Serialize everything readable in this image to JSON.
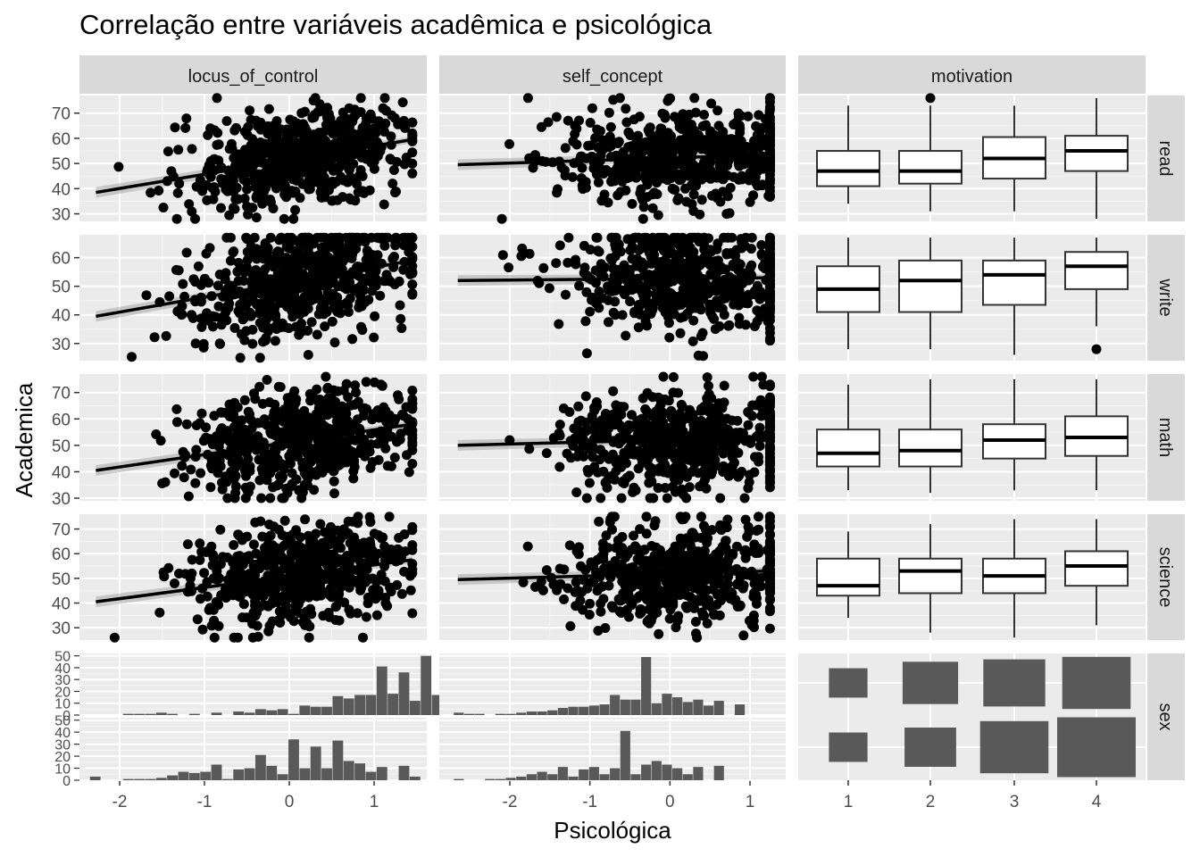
{
  "colors": {
    "panel_bg": "#ebebeb",
    "grid_major": "#ffffff",
    "grid_minor": "#f5f5f5",
    "strip_bg": "#d9d9d9",
    "point": "#000000",
    "bar": "#595959",
    "box_fill": "#ffffff",
    "box_line": "#333333",
    "ci_band": "#999999"
  },
  "chart_data": {
    "type": "scatter",
    "title": "Correlação entre variáveis acadêmica e psicológica",
    "xlabel": "Psicológica",
    "ylabel": "Academica",
    "column_strips": [
      "locus_of_control",
      "self_concept",
      "motivation"
    ],
    "row_strips": [
      "read",
      "write",
      "math",
      "science",
      "sex"
    ],
    "x_axes": {
      "locus_of_control": {
        "range": [
          -2.35,
          1.5
        ],
        "ticks": [
          -2,
          -1,
          0,
          1
        ],
        "tick_labels": [
          "-2",
          "-1",
          "0",
          "1"
        ]
      },
      "self_concept": {
        "range": [
          -2.8,
          1.4
        ],
        "ticks": [
          -2,
          -1,
          0,
          1
        ],
        "tick_labels": [
          "-2",
          "-1",
          "0",
          "1"
        ]
      },
      "motivation": {
        "categories": [
          "1",
          "2",
          "3",
          "4"
        ]
      }
    },
    "y_axes": {
      "read": {
        "range": [
          27,
          77
        ],
        "ticks": [
          30,
          40,
          50,
          60,
          70
        ],
        "tick_labels": [
          "30",
          "40",
          "50",
          "60",
          "70"
        ]
      },
      "write": {
        "range": [
          24,
          68
        ],
        "ticks": [
          30,
          40,
          50,
          60
        ],
        "tick_labels": [
          "30",
          "40",
          "50",
          "60"
        ]
      },
      "math": {
        "range": [
          29,
          77
        ],
        "ticks": [
          30,
          40,
          50,
          60,
          70
        ],
        "tick_labels": [
          "30",
          "40",
          "50",
          "60",
          "70"
        ]
      },
      "science": {
        "range": [
          25,
          76
        ],
        "ticks": [
          30,
          40,
          50,
          60,
          70
        ],
        "tick_labels": [
          "30",
          "40",
          "50",
          "60",
          "70"
        ]
      },
      "sex_count": {
        "range": [
          0,
          52
        ],
        "ticks": [
          0,
          10,
          20,
          30,
          40,
          50
        ],
        "tick_labels": [
          "0",
          "10",
          "20",
          "30",
          "40",
          "50"
        ]
      }
    },
    "regression_lines": {
      "locus_of_control": {
        "read": [
          -2.28,
          38.5,
          1.45,
          59.5
        ],
        "write": [
          -2.28,
          39.5,
          1.45,
          59.0
        ],
        "math": [
          -2.28,
          40.5,
          1.45,
          58.0
        ],
        "science": [
          -2.28,
          40.5,
          1.45,
          57.5
        ]
      },
      "self_concept": {
        "read": [
          -2.65,
          49.5,
          1.25,
          53.5
        ],
        "write": [
          -2.65,
          52.0,
          1.25,
          53.0
        ],
        "math": [
          -2.65,
          50.0,
          1.25,
          53.0
        ],
        "science": [
          -2.65,
          49.5,
          1.25,
          53.0
        ]
      }
    },
    "boxplots": {
      "read": [
        {
          "group": "1",
          "min": 34,
          "q1": 41,
          "median": 47,
          "q3": 55,
          "max": 73,
          "outliers": []
        },
        {
          "group": "2",
          "min": 31,
          "q1": 42,
          "median": 47,
          "q3": 55,
          "max": 73,
          "outliers": [
            76
          ]
        },
        {
          "group": "3",
          "min": 31,
          "q1": 44,
          "median": 52,
          "q3": 60.5,
          "max": 73,
          "outliers": []
        },
        {
          "group": "4",
          "min": 28,
          "q1": 47,
          "median": 55,
          "q3": 61,
          "max": 76,
          "outliers": []
        }
      ],
      "write": [
        {
          "group": "1",
          "min": 28,
          "q1": 41,
          "median": 49,
          "q3": 57,
          "max": 67,
          "outliers": []
        },
        {
          "group": "2",
          "min": 28,
          "q1": 41,
          "median": 52,
          "q3": 59,
          "max": 67,
          "outliers": []
        },
        {
          "group": "3",
          "min": 26,
          "q1": 43.5,
          "median": 54,
          "q3": 59,
          "max": 67,
          "outliers": []
        },
        {
          "group": "4",
          "min": 36,
          "q1": 49,
          "median": 57,
          "q3": 62,
          "max": 67,
          "outliers": [
            28
          ]
        }
      ],
      "math": [
        {
          "group": "1",
          "min": 33,
          "q1": 42,
          "median": 47,
          "q3": 56,
          "max": 73,
          "outliers": []
        },
        {
          "group": "2",
          "min": 32,
          "q1": 42,
          "median": 48,
          "q3": 56,
          "max": 75,
          "outliers": []
        },
        {
          "group": "3",
          "min": 33,
          "q1": 45,
          "median": 52,
          "q3": 58,
          "max": 75,
          "outliers": []
        },
        {
          "group": "4",
          "min": 33,
          "q1": 46,
          "median": 53,
          "q3": 61,
          "max": 75,
          "outliers": []
        }
      ],
      "science": [
        {
          "group": "1",
          "min": 34,
          "q1": 43,
          "median": 47,
          "q3": 58,
          "max": 69,
          "outliers": []
        },
        {
          "group": "2",
          "min": 28,
          "q1": 44,
          "median": 53,
          "q3": 58,
          "max": 72,
          "outliers": []
        },
        {
          "group": "3",
          "min": 26,
          "q1": 44,
          "median": 51,
          "q3": 58,
          "max": 74,
          "outliers": []
        },
        {
          "group": "4",
          "min": 31,
          "q1": 47,
          "median": 55,
          "q3": 61,
          "max": 74,
          "outliers": []
        }
      ]
    },
    "histograms": {
      "locus_of_control": {
        "bin_width": 0.13,
        "sex_1": [
          0,
          0,
          0,
          1,
          1,
          1,
          2,
          1,
          0,
          1,
          0,
          2,
          0,
          3,
          2,
          5,
          4,
          5,
          1,
          8,
          7,
          7,
          16,
          14,
          17,
          17,
          41,
          18,
          36,
          12,
          50,
          17,
          16,
          14,
          12,
          19,
          0,
          8
        ],
        "sex_2": [
          3,
          0,
          0,
          1,
          1,
          1,
          2,
          4,
          7,
          6,
          7,
          13,
          1,
          9,
          10,
          21,
          12,
          5,
          34,
          10,
          28,
          10,
          33,
          16,
          14,
          7,
          11,
          0,
          12,
          3
        ]
      },
      "self_concept": {
        "bin_width": 0.13,
        "sex_1": [
          2,
          1,
          1,
          0,
          1,
          1,
          2,
          3,
          3,
          4,
          6,
          7,
          7,
          8,
          9,
          17,
          13,
          13,
          49,
          10,
          18,
          15,
          11,
          13,
          8,
          12,
          0,
          9
        ],
        "sex_2": [
          1,
          0,
          0,
          1,
          1,
          2,
          3,
          5,
          7,
          5,
          11,
          3,
          9,
          11,
          5,
          10,
          41,
          5,
          13,
          16,
          13,
          10,
          5,
          11,
          0,
          12
        ]
      }
    },
    "mosaic": {
      "rows": [
        "1",
        "2"
      ],
      "columns": [
        "1",
        "2",
        "3",
        "4"
      ],
      "relative_area": [
        [
          0.14,
          0.29,
          0.36,
          0.44
        ],
        [
          0.14,
          0.25,
          0.44,
          0.58
        ]
      ]
    }
  }
}
